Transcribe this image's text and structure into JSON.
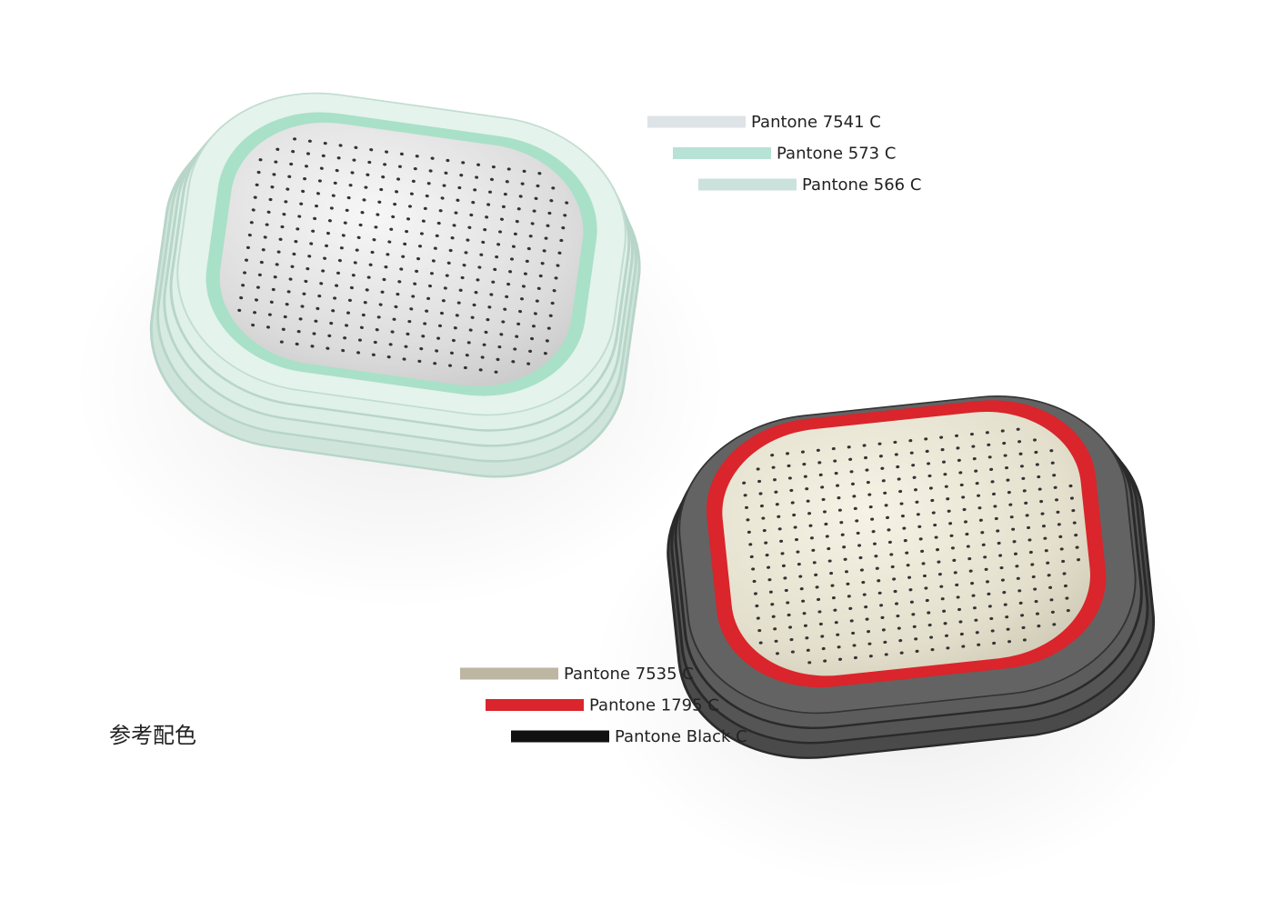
{
  "title": "参考配色",
  "palettes": [
    {
      "swatches": [
        {
          "label": "Pantone 7541 C",
          "color": "#dde3e6"
        },
        {
          "label": "Pantone 573 C",
          "color": "#b7e2d6"
        },
        {
          "label": "Pantone 566 C",
          "color": "#cbe2dc"
        }
      ]
    },
    {
      "swatches": [
        {
          "label": "Pantone 7535 C",
          "color": "#bcb6a2"
        },
        {
          "label": "Pantone 1795 C",
          "color": "#d9252b"
        },
        {
          "label": "Pantone Black C",
          "color": "#111111"
        }
      ]
    }
  ]
}
